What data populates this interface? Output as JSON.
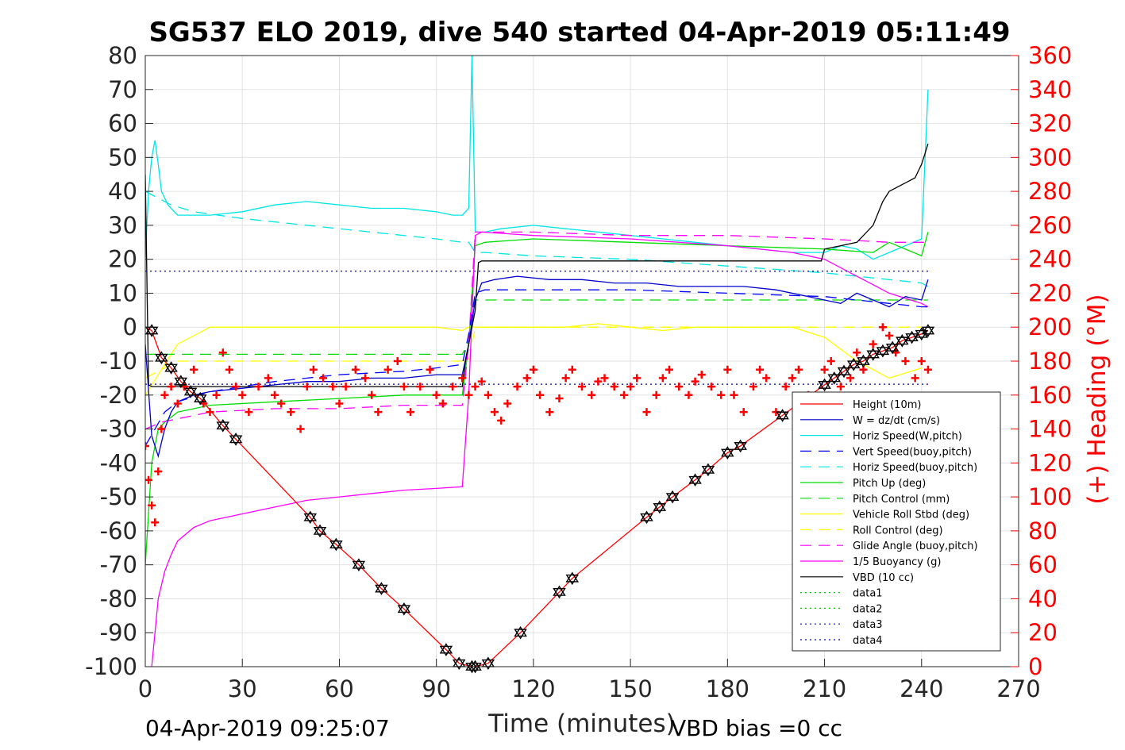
{
  "chart_data": {
    "type": "line",
    "title": "SG537 ELO 2019, dive 540 started 04-Apr-2019 05:11:49",
    "xlabel": "Time (minutes)",
    "ylabel_right": "(+) Heading (°M)",
    "xlim": [
      0,
      270
    ],
    "ylim": [
      -100,
      80
    ],
    "ylim_right": [
      0,
      360
    ],
    "x_ticks": [
      "0",
      "30",
      "60",
      "90",
      "120",
      "150",
      "180",
      "210",
      "240",
      "270"
    ],
    "y_ticks": [
      "80",
      "70",
      "60",
      "50",
      "40",
      "30",
      "20",
      "10",
      "0",
      "-10",
      "-20",
      "-30",
      "-40",
      "-50",
      "-60",
      "-70",
      "-80",
      "-90",
      "-100"
    ],
    "y_ticks_right": [
      "360",
      "340",
      "320",
      "300",
      "280",
      "260",
      "240",
      "220",
      "200",
      "180",
      "160",
      "140",
      "120",
      "100",
      "80",
      "60",
      "40",
      "20",
      "0"
    ],
    "grid": true,
    "legend_position": "lower-right",
    "bottom_left_note": "04-Apr-2019 09:25:07",
    "bottom_right_note": "VBD bias =0 cc",
    "series": [
      {
        "name": "Height (10m)",
        "color": "#ff0000",
        "style": "solid",
        "x": [
          0,
          2,
          5,
          8,
          11,
          14,
          17,
          24,
          28,
          51,
          54,
          59,
          66,
          73,
          80,
          93,
          97,
          101,
          102,
          106,
          116,
          128,
          132,
          155,
          159,
          163,
          170,
          174,
          180,
          184,
          197,
          210,
          213,
          216,
          219,
          222,
          225,
          228,
          231,
          234,
          237,
          240,
          242
        ],
        "y": [
          0,
          -1,
          -9,
          -12,
          -16,
          -19,
          -21,
          -29,
          -33,
          -56,
          -60,
          -64,
          -70,
          -77,
          -83,
          -95,
          -99,
          -100,
          -100,
          -99,
          -90,
          -78,
          -74,
          -56,
          -53,
          -50,
          -45,
          -42,
          -37,
          -35,
          -26,
          -17,
          -15,
          -13,
          -11,
          -10,
          -8,
          -7,
          -6,
          -4,
          -3,
          -2,
          -1
        ]
      },
      {
        "name": "W = dz/dt (cm/s)",
        "color": "#0000cc",
        "style": "solid",
        "x": [
          0,
          2,
          4,
          6,
          8,
          10,
          15,
          20,
          30,
          40,
          50,
          60,
          70,
          80,
          90,
          95,
          98,
          100,
          102,
          104,
          108,
          115,
          125,
          135,
          145,
          155,
          165,
          175,
          185,
          195,
          205,
          210,
          215,
          220,
          225,
          230,
          235,
          240,
          242
        ],
        "y": [
          -5,
          -32,
          -38,
          -30,
          -25,
          -22,
          -20,
          -19,
          -18,
          -17,
          -16,
          -16,
          -15,
          -15,
          -14,
          -14,
          -14,
          -5,
          8,
          13,
          14,
          15,
          14,
          14,
          13,
          13,
          12,
          12,
          12,
          11,
          9,
          8,
          7,
          10,
          8,
          6,
          9,
          8,
          14
        ]
      },
      {
        "name": "Horiz Speed(W,pitch)",
        "color": "#00e5e5",
        "style": "solid",
        "x": [
          0,
          1,
          2,
          3,
          4,
          5,
          7,
          10,
          15,
          20,
          30,
          40,
          50,
          60,
          70,
          80,
          90,
          95,
          98,
          100,
          101,
          102,
          103,
          105,
          110,
          120,
          130,
          140,
          150,
          160,
          170,
          180,
          190,
          200,
          210,
          215,
          220,
          225,
          230,
          235,
          240,
          242
        ],
        "y": [
          20,
          40,
          50,
          55,
          48,
          40,
          36,
          33,
          33,
          33,
          34,
          36,
          37,
          36,
          35,
          35,
          34,
          33,
          33,
          35,
          80,
          28,
          28,
          28,
          29,
          30,
          29,
          28,
          27,
          26,
          25,
          24,
          23,
          22,
          22,
          24,
          23,
          20,
          22,
          24,
          26,
          70
        ]
      },
      {
        "name": "Vert Speed(buoy,pitch)",
        "color": "#0000ff",
        "style": "dashed",
        "x": [
          0,
          3,
          6,
          10,
          20,
          40,
          60,
          80,
          90,
          98,
          100,
          102,
          105,
          120,
          150,
          180,
          210,
          230,
          240,
          242
        ],
        "y": [
          -35,
          -30,
          -25,
          -22,
          -19,
          -16,
          -14,
          -13,
          -12,
          -11,
          -2,
          10,
          11,
          11,
          11,
          10,
          9,
          7,
          6,
          6
        ]
      },
      {
        "name": "Horiz Speed(buoy,pitch)",
        "color": "#00e5e5",
        "style": "dashed",
        "x": [
          0,
          4,
          8,
          15,
          30,
          60,
          90,
          98,
          100,
          102,
          105,
          120,
          150,
          180,
          210,
          230,
          240,
          242
        ],
        "y": [
          40,
          38,
          36,
          34,
          32,
          29,
          26,
          25,
          25,
          22,
          22,
          21,
          20,
          18,
          16,
          14,
          13,
          12
        ]
      },
      {
        "name": "Pitch Up (deg)",
        "color": "#00dd00",
        "style": "solid",
        "x": [
          0,
          2,
          4,
          6,
          10,
          20,
          40,
          60,
          80,
          98,
          100,
          102,
          105,
          120,
          150,
          180,
          210,
          225,
          230,
          240,
          242
        ],
        "y": [
          -70,
          -40,
          -30,
          -28,
          -25,
          -23,
          -22,
          -21,
          -20,
          -20,
          -5,
          24,
          25,
          26,
          25,
          24,
          23,
          22,
          25,
          21,
          28
        ]
      },
      {
        "name": "Pitch Control (mm)",
        "color": "#00dd00",
        "style": "dashed",
        "x": [
          0,
          5,
          10,
          20,
          98,
          100,
          102,
          105,
          240,
          242
        ],
        "y": [
          -8,
          -8,
          -8,
          -8,
          -8,
          -4,
          8,
          8,
          8,
          8
        ]
      },
      {
        "name": "Vehicle Roll Stbd (deg)",
        "color": "#ffff00",
        "style": "solid",
        "x": [
          0,
          10,
          20,
          30,
          40,
          50,
          60,
          70,
          80,
          90,
          98,
          100,
          102,
          110,
          120,
          130,
          140,
          150,
          160,
          170,
          180,
          190,
          200,
          210,
          220,
          230,
          240
        ],
        "y": [
          -20,
          -5,
          0,
          0,
          0,
          0,
          0,
          0,
          0,
          0,
          -1,
          0,
          0,
          0,
          0,
          0,
          1,
          0,
          -1,
          0,
          0,
          0,
          0,
          -3,
          -10,
          -15,
          -12
        ]
      },
      {
        "name": "Roll Control (deg)",
        "color": "#ffff00",
        "style": "dashed",
        "x": [
          0,
          10,
          100,
          102,
          200,
          210,
          240
        ],
        "y": [
          -15,
          -10,
          -10,
          0,
          0,
          0,
          0
        ]
      },
      {
        "name": "Glide Angle (buoy,pitch)",
        "color": "#ff00ff",
        "style": "dashed",
        "x": [
          0,
          5,
          10,
          20,
          40,
          60,
          80,
          98,
          100,
          102,
          105,
          120,
          150,
          180,
          210,
          230,
          240,
          242
        ],
        "y": [
          -30,
          -28,
          -27,
          -25,
          -24,
          -24,
          -23,
          -23,
          -5,
          28,
          28,
          28,
          27,
          27,
          26,
          25,
          25,
          25
        ]
      },
      {
        "name": "1/5 Buoyancy (g)",
        "color": "#ff00ff",
        "style": "solid",
        "x": [
          2,
          4,
          6,
          8,
          10,
          15,
          20,
          30,
          40,
          50,
          60,
          70,
          80,
          90,
          98,
          100,
          102,
          104,
          120,
          150,
          180,
          200,
          210,
          220,
          230,
          240,
          242
        ],
        "y": [
          -100,
          -80,
          -72,
          -67,
          -63,
          -59,
          -57,
          -55,
          -53,
          -51,
          -50,
          -49,
          -48,
          -47.5,
          -47,
          -20,
          27,
          28,
          27,
          26,
          24,
          22,
          20,
          15,
          10,
          7,
          6
        ]
      },
      {
        "name": "VBD (10 cc)",
        "color": "#000000",
        "style": "solid",
        "x": [
          0,
          1,
          2,
          3,
          4,
          98,
          99,
          100,
          102,
          103,
          104,
          209,
          210,
          215,
          220,
          225,
          228,
          230,
          232,
          234,
          236,
          238,
          240,
          241,
          242
        ],
        "y": [
          45,
          -17,
          -17.5,
          -17.5,
          -17.5,
          -17.5,
          -10,
          -5,
          5,
          19,
          19.5,
          19.5,
          23,
          24,
          25,
          30,
          37,
          40,
          41,
          42,
          43,
          44,
          48,
          51,
          54
        ]
      },
      {
        "name": "data1",
        "color": "#00cc00",
        "style": "dotted",
        "x": [],
        "y": []
      },
      {
        "name": "data2",
        "color": "#00cc00",
        "style": "dotted",
        "x": [],
        "y": []
      },
      {
        "name": "data3",
        "color": "#0000aa",
        "style": "dotted",
        "x": [
          0,
          243
        ],
        "y": [
          16.5,
          16.5
        ]
      },
      {
        "name": "data4",
        "color": "#0000aa",
        "style": "dotted",
        "x": [
          0,
          243
        ],
        "y": [
          -16.8,
          -16.8
        ]
      }
    ],
    "heading_series": {
      "color": "#ff0000",
      "marker": "plus",
      "axis": "right",
      "x": [
        0,
        1,
        2,
        3,
        4,
        5,
        6,
        8,
        10,
        12,
        15,
        18,
        20,
        22,
        24,
        26,
        28,
        30,
        32,
        35,
        38,
        40,
        42,
        45,
        48,
        50,
        52,
        55,
        58,
        60,
        62,
        65,
        68,
        70,
        72,
        75,
        78,
        80,
        82,
        85,
        88,
        90,
        92,
        95,
        98,
        100,
        102,
        104,
        106,
        108,
        110,
        112,
        115,
        118,
        120,
        122,
        125,
        128,
        130,
        132,
        135,
        138,
        140,
        142,
        145,
        148,
        150,
        152,
        155,
        158,
        160,
        162,
        165,
        168,
        170,
        172,
        175,
        178,
        180,
        182,
        185,
        188,
        190,
        192,
        195,
        198,
        200,
        202,
        205,
        208,
        210,
        212,
        215,
        218,
        220,
        222,
        225,
        228,
        230,
        232,
        235,
        238,
        240,
        242
      ],
      "y": [
        130,
        110,
        95,
        85,
        115,
        140,
        160,
        165,
        155,
        165,
        175,
        155,
        150,
        160,
        185,
        175,
        165,
        160,
        150,
        165,
        170,
        160,
        155,
        150,
        140,
        165,
        175,
        170,
        165,
        155,
        165,
        175,
        170,
        160,
        150,
        175,
        180,
        165,
        150,
        165,
        175,
        160,
        155,
        165,
        170,
        160,
        165,
        168,
        160,
        150,
        145,
        155,
        165,
        170,
        175,
        160,
        150,
        158,
        170,
        175,
        165,
        160,
        168,
        170,
        165,
        160,
        165,
        170,
        150,
        160,
        170,
        175,
        165,
        160,
        168,
        172,
        165,
        160,
        175,
        160,
        150,
        165,
        175,
        170,
        150,
        165,
        170,
        175,
        160,
        150,
        175,
        180,
        165,
        170,
        185,
        175,
        190,
        200,
        195,
        185,
        180,
        170,
        180,
        175
      ]
    },
    "dive_markers": {
      "marker": "triangle-hexagram",
      "color": "#000000",
      "x": [
        2,
        5,
        8,
        11,
        14,
        17,
        24,
        28,
        51,
        54,
        59,
        66,
        73,
        80,
        93,
        97,
        101,
        102,
        106,
        116,
        128,
        132,
        155,
        159,
        163,
        170,
        174,
        180,
        184,
        197,
        210,
        213,
        216,
        219,
        222,
        225,
        228,
        231,
        234,
        237,
        240,
        242
      ],
      "y": [
        -1,
        -9,
        -12,
        -16,
        -19,
        -21,
        -29,
        -33,
        -56,
        -60,
        -64,
        -70,
        -77,
        -83,
        -95,
        -99,
        -100,
        -100,
        -99,
        -90,
        -78,
        -74,
        -56,
        -53,
        -50,
        -45,
        -42,
        -37,
        -35,
        -26,
        -17,
        -15,
        -13,
        -11,
        -10,
        -8,
        -7,
        -6,
        -4,
        -3,
        -2,
        -1
      ]
    }
  }
}
